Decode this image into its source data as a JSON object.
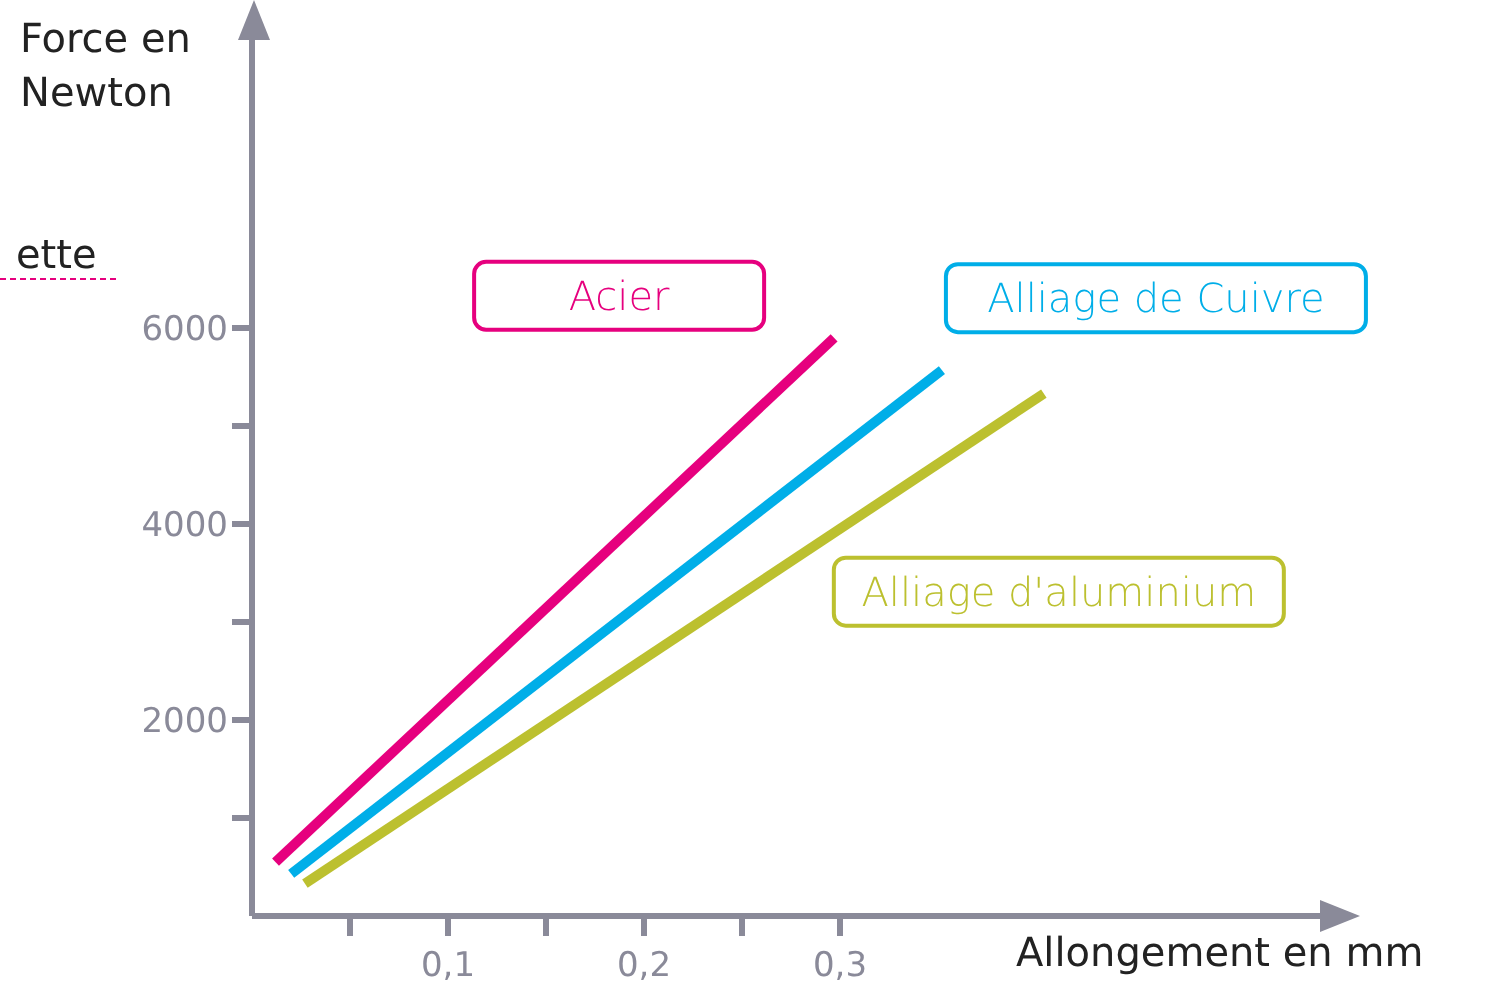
{
  "chart_data": {
    "type": "line",
    "xlabel": "Allongement en mm",
    "ylabel": "Force en Newton",
    "annotations": [
      "ette"
    ],
    "xlim": [
      0,
      0.55
    ],
    "ylim": [
      0,
      9000
    ],
    "xticks": [
      {
        "value": 0.05,
        "label": null
      },
      {
        "value": 0.1,
        "label": "0,1"
      },
      {
        "value": 0.15,
        "label": null
      },
      {
        "value": 0.2,
        "label": "0,2"
      },
      {
        "value": 0.25,
        "label": null
      },
      {
        "value": 0.3,
        "label": "0,3"
      }
    ],
    "yticks": [
      {
        "value": 1000,
        "label": null
      },
      2000,
      {
        "value": 3000,
        "label": null
      },
      4000,
      {
        "value": 5000,
        "label": null
      },
      6000
    ],
    "marker": "none",
    "line_style": "solid",
    "series": [
      {
        "name": "Acier",
        "color": "#e6007e",
        "x": [
          0.012,
          0.297
        ],
        "values": [
          550,
          5900
        ]
      },
      {
        "name": "Alliage de Cuivre",
        "color": "#00aee8",
        "x": [
          0.02,
          0.352
        ],
        "values": [
          430,
          5570
        ]
      },
      {
        "name": "Alliage d'aluminium",
        "color": "#bcc02f",
        "x": [
          0.027,
          0.404
        ],
        "values": [
          330,
          5330
        ]
      }
    ]
  }
}
